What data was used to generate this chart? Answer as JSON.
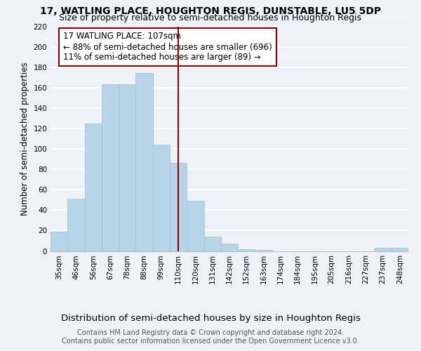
{
  "title": "17, WATLING PLACE, HOUGHTON REGIS, DUNSTABLE, LU5 5DP",
  "subtitle": "Size of property relative to semi-detached houses in Houghton Regis",
  "xlabel": "Distribution of semi-detached houses by size in Houghton Regis",
  "ylabel": "Number of semi-detached properties",
  "footer": "Contains HM Land Registry data © Crown copyright and database right 2024.\nContains public sector information licensed under the Open Government Licence v3.0.",
  "categories": [
    "35sqm",
    "46sqm",
    "56sqm",
    "67sqm",
    "78sqm",
    "88sqm",
    "99sqm",
    "110sqm",
    "120sqm",
    "131sqm",
    "142sqm",
    "152sqm",
    "163sqm",
    "174sqm",
    "184sqm",
    "195sqm",
    "205sqm",
    "216sqm",
    "227sqm",
    "237sqm",
    "248sqm"
  ],
  "values": [
    19,
    51,
    125,
    163,
    163,
    174,
    104,
    86,
    49,
    14,
    7,
    2,
    1,
    0,
    0,
    0,
    0,
    0,
    0,
    3,
    3
  ],
  "bar_color": "#b8d4e8",
  "bar_edge_color": "#a0c0d8",
  "vline_x_index": 7,
  "vline_color": "#8b0000",
  "annotation_text": "17 WATLING PLACE: 107sqm\n← 88% of semi-detached houses are smaller (696)\n11% of semi-detached houses are larger (89) →",
  "annotation_box_color": "#8b0000",
  "ylim": [
    0,
    220
  ],
  "yticks": [
    0,
    20,
    40,
    60,
    80,
    100,
    120,
    140,
    160,
    180,
    200,
    220
  ],
  "background_color": "#eef2f8",
  "grid_color": "#ffffff",
  "title_fontsize": 10,
  "subtitle_fontsize": 9,
  "xlabel_fontsize": 9.5,
  "ylabel_fontsize": 8.5,
  "tick_fontsize": 7.5,
  "annotation_fontsize": 8.5,
  "footer_fontsize": 7
}
